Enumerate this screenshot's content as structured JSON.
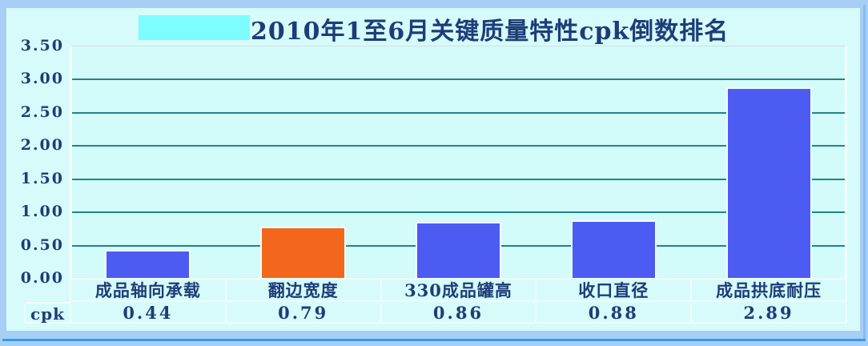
{
  "title": "2010年1至6月关键质量特性cpk倒数排名",
  "legend_swatch": {
    "color": "#7dfdfd"
  },
  "chart_data": {
    "type": "bar",
    "title": "2010年1至6月关键质量特性cpk倒数排名",
    "categories": [
      "成品轴向承载",
      "翻边宽度",
      "330成品罐高",
      "收口直径",
      "成品拱底耐压"
    ],
    "values": [
      0.44,
      0.79,
      0.86,
      0.88,
      2.89
    ],
    "value_labels": [
      "0.44",
      "0.79",
      "0.86",
      "0.88",
      "2.89"
    ],
    "row_label": "cpk",
    "bar_colors": [
      "#4c5cf2",
      "#f2671c",
      "#4c5cf2",
      "#4c5cf2",
      "#4c5cf2"
    ],
    "xlabel": "",
    "ylabel": "",
    "ylim": [
      0,
      3.5
    ],
    "ytick_step": 0.5,
    "ytick_labels": [
      "3.50",
      "3.00",
      "2.50",
      "2.00",
      "1.50",
      "1.00",
      "0.50",
      "0.00"
    ],
    "grid": true,
    "gridline_color": "#1e8686",
    "plot_background": "#d3fbf9",
    "frame_color": "#a9cef6",
    "accent_line_color": "#2e9ef2",
    "text_color": "#1d3d78"
  }
}
